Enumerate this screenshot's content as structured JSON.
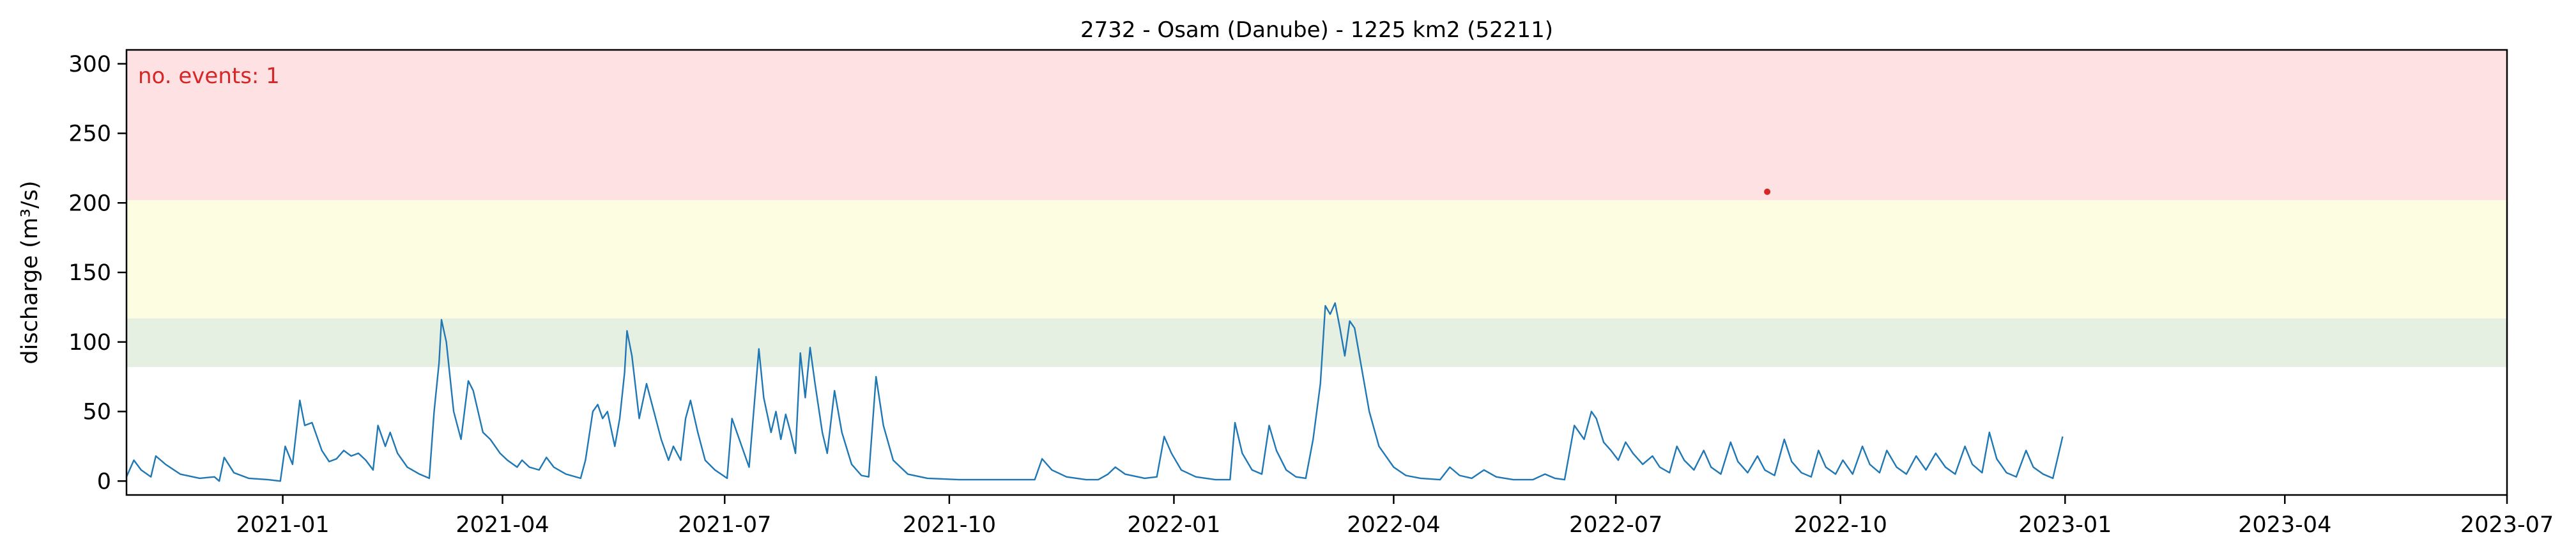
{
  "chart_data": {
    "type": "line",
    "title": "2732 - Osam (Danube) - 1225 km2 (52211)",
    "xlabel": "",
    "ylabel": "discharge (m³/s)",
    "xlim": [
      "2020-10-29",
      "2023-07-01"
    ],
    "ylim": [
      -10,
      310
    ],
    "x_ticks": [
      "2021-01",
      "2021-04",
      "2021-07",
      "2021-10",
      "2022-01",
      "2022-04",
      "2022-07",
      "2022-10",
      "2023-01",
      "2023-04",
      "2023-07"
    ],
    "y_ticks": [
      0,
      50,
      100,
      150,
      200,
      250,
      300
    ],
    "grid": false,
    "bands": [
      {
        "name": "band-green",
        "from": 82,
        "to": 117,
        "color": "#e5f0e3"
      },
      {
        "name": "band-yellow",
        "from": 117,
        "to": 202,
        "color": "#fdfde2"
      },
      {
        "name": "band-red",
        "from": 202,
        "to": 310,
        "color": "#fde1e3"
      }
    ],
    "annotation": {
      "text": "no. events: 1",
      "color": "#d62728"
    },
    "events": [
      {
        "x": "2022-09-01",
        "y": 208,
        "color": "#d62728"
      }
    ],
    "series": [
      {
        "color": "#1f77b4",
        "points": [
          [
            "2020-10-29",
            3
          ],
          [
            "2020-11-01",
            15
          ],
          [
            "2020-11-04",
            8
          ],
          [
            "2020-11-08",
            3
          ],
          [
            "2020-11-10",
            18
          ],
          [
            "2020-11-14",
            12
          ],
          [
            "2020-11-20",
            5
          ],
          [
            "2020-11-28",
            2
          ],
          [
            "2020-12-04",
            3
          ],
          [
            "2020-12-06",
            0
          ],
          [
            "2020-12-08",
            17
          ],
          [
            "2020-12-12",
            6
          ],
          [
            "2020-12-18",
            2
          ],
          [
            "2020-12-26",
            1
          ],
          [
            "2020-12-31",
            0
          ],
          [
            "2021-01-02",
            25
          ],
          [
            "2021-01-05",
            12
          ],
          [
            "2021-01-08",
            58
          ],
          [
            "2021-01-10",
            40
          ],
          [
            "2021-01-13",
            42
          ],
          [
            "2021-01-17",
            22
          ],
          [
            "2021-01-20",
            14
          ],
          [
            "2021-01-23",
            16
          ],
          [
            "2021-01-26",
            22
          ],
          [
            "2021-01-29",
            18
          ],
          [
            "2021-02-01",
            20
          ],
          [
            "2021-02-04",
            15
          ],
          [
            "2021-02-07",
            8
          ],
          [
            "2021-02-09",
            40
          ],
          [
            "2021-02-12",
            25
          ],
          [
            "2021-02-14",
            35
          ],
          [
            "2021-02-17",
            20
          ],
          [
            "2021-02-21",
            10
          ],
          [
            "2021-02-26",
            5
          ],
          [
            "2021-03-02",
            2
          ],
          [
            "2021-03-04",
            50
          ],
          [
            "2021-03-06",
            85
          ],
          [
            "2021-03-07",
            116
          ],
          [
            "2021-03-09",
            100
          ],
          [
            "2021-03-12",
            50
          ],
          [
            "2021-03-15",
            30
          ],
          [
            "2021-03-18",
            72
          ],
          [
            "2021-03-20",
            65
          ],
          [
            "2021-03-24",
            35
          ],
          [
            "2021-03-27",
            30
          ],
          [
            "2021-03-31",
            20
          ],
          [
            "2021-04-03",
            15
          ],
          [
            "2021-04-07",
            10
          ],
          [
            "2021-04-09",
            15
          ],
          [
            "2021-04-12",
            10
          ],
          [
            "2021-04-16",
            8
          ],
          [
            "2021-04-19",
            17
          ],
          [
            "2021-04-22",
            10
          ],
          [
            "2021-04-27",
            5
          ],
          [
            "2021-05-03",
            2
          ],
          [
            "2021-05-05",
            15
          ],
          [
            "2021-05-08",
            50
          ],
          [
            "2021-05-10",
            55
          ],
          [
            "2021-05-12",
            45
          ],
          [
            "2021-05-14",
            50
          ],
          [
            "2021-05-17",
            25
          ],
          [
            "2021-05-19",
            45
          ],
          [
            "2021-05-21",
            78
          ],
          [
            "2021-05-22",
            108
          ],
          [
            "2021-05-24",
            90
          ],
          [
            "2021-05-27",
            45
          ],
          [
            "2021-05-30",
            70
          ],
          [
            "2021-06-02",
            50
          ],
          [
            "2021-06-05",
            30
          ],
          [
            "2021-06-08",
            15
          ],
          [
            "2021-06-10",
            25
          ],
          [
            "2021-06-13",
            15
          ],
          [
            "2021-06-15",
            45
          ],
          [
            "2021-06-17",
            58
          ],
          [
            "2021-06-20",
            35
          ],
          [
            "2021-06-23",
            15
          ],
          [
            "2021-06-27",
            8
          ],
          [
            "2021-07-02",
            2
          ],
          [
            "2021-07-04",
            45
          ],
          [
            "2021-07-08",
            25
          ],
          [
            "2021-07-11",
            10
          ],
          [
            "2021-07-15",
            95
          ],
          [
            "2021-07-17",
            60
          ],
          [
            "2021-07-20",
            35
          ],
          [
            "2021-07-22",
            50
          ],
          [
            "2021-07-24",
            30
          ],
          [
            "2021-07-26",
            48
          ],
          [
            "2021-07-28",
            35
          ],
          [
            "2021-07-30",
            20
          ],
          [
            "2021-08-01",
            92
          ],
          [
            "2021-08-03",
            60
          ],
          [
            "2021-08-05",
            96
          ],
          [
            "2021-08-07",
            70
          ],
          [
            "2021-08-10",
            35
          ],
          [
            "2021-08-12",
            20
          ],
          [
            "2021-08-15",
            65
          ],
          [
            "2021-08-18",
            35
          ],
          [
            "2021-08-22",
            12
          ],
          [
            "2021-08-26",
            4
          ],
          [
            "2021-08-29",
            3
          ],
          [
            "2021-09-01",
            75
          ],
          [
            "2021-09-04",
            40
          ],
          [
            "2021-09-08",
            15
          ],
          [
            "2021-09-14",
            5
          ],
          [
            "2021-09-22",
            2
          ],
          [
            "2021-10-05",
            1
          ],
          [
            "2021-10-20",
            1
          ],
          [
            "2021-11-05",
            1
          ],
          [
            "2021-11-08",
            16
          ],
          [
            "2021-11-12",
            8
          ],
          [
            "2021-11-18",
            3
          ],
          [
            "2021-11-26",
            1
          ],
          [
            "2021-12-01",
            1
          ],
          [
            "2021-12-05",
            5
          ],
          [
            "2021-12-08",
            10
          ],
          [
            "2021-12-12",
            5
          ],
          [
            "2021-12-20",
            2
          ],
          [
            "2021-12-25",
            3
          ],
          [
            "2021-12-28",
            32
          ],
          [
            "2021-12-31",
            20
          ],
          [
            "2022-01-04",
            8
          ],
          [
            "2022-01-10",
            3
          ],
          [
            "2022-01-18",
            1
          ],
          [
            "2022-01-24",
            1
          ],
          [
            "2022-01-26",
            42
          ],
          [
            "2022-01-29",
            20
          ],
          [
            "2022-02-02",
            8
          ],
          [
            "2022-02-06",
            5
          ],
          [
            "2022-02-09",
            40
          ],
          [
            "2022-02-12",
            22
          ],
          [
            "2022-02-16",
            8
          ],
          [
            "2022-02-20",
            3
          ],
          [
            "2022-02-24",
            2
          ],
          [
            "2022-02-27",
            30
          ],
          [
            "2022-03-02",
            70
          ],
          [
            "2022-03-04",
            126
          ],
          [
            "2022-03-06",
            120
          ],
          [
            "2022-03-08",
            128
          ],
          [
            "2022-03-10",
            110
          ],
          [
            "2022-03-12",
            90
          ],
          [
            "2022-03-14",
            115
          ],
          [
            "2022-03-16",
            110
          ],
          [
            "2022-03-19",
            80
          ],
          [
            "2022-03-22",
            50
          ],
          [
            "2022-03-26",
            25
          ],
          [
            "2022-04-01",
            10
          ],
          [
            "2022-04-06",
            4
          ],
          [
            "2022-04-12",
            2
          ],
          [
            "2022-04-20",
            1
          ],
          [
            "2022-04-24",
            10
          ],
          [
            "2022-04-28",
            4
          ],
          [
            "2022-05-03",
            2
          ],
          [
            "2022-05-08",
            8
          ],
          [
            "2022-05-13",
            3
          ],
          [
            "2022-05-20",
            1
          ],
          [
            "2022-05-28",
            1
          ],
          [
            "2022-06-02",
            5
          ],
          [
            "2022-06-06",
            2
          ],
          [
            "2022-06-10",
            1
          ],
          [
            "2022-06-14",
            40
          ],
          [
            "2022-06-18",
            30
          ],
          [
            "2022-06-21",
            50
          ],
          [
            "2022-06-23",
            45
          ],
          [
            "2022-06-26",
            28
          ],
          [
            "2022-06-29",
            22
          ],
          [
            "2022-07-02",
            15
          ],
          [
            "2022-07-05",
            28
          ],
          [
            "2022-07-08",
            20
          ],
          [
            "2022-07-12",
            12
          ],
          [
            "2022-07-16",
            18
          ],
          [
            "2022-07-19",
            10
          ],
          [
            "2022-07-23",
            6
          ],
          [
            "2022-07-26",
            25
          ],
          [
            "2022-07-29",
            15
          ],
          [
            "2022-08-02",
            8
          ],
          [
            "2022-08-06",
            22
          ],
          [
            "2022-08-09",
            10
          ],
          [
            "2022-08-13",
            5
          ],
          [
            "2022-08-17",
            28
          ],
          [
            "2022-08-20",
            14
          ],
          [
            "2022-08-24",
            6
          ],
          [
            "2022-08-28",
            18
          ],
          [
            "2022-08-31",
            8
          ],
          [
            "2022-09-04",
            4
          ],
          [
            "2022-09-08",
            30
          ],
          [
            "2022-09-11",
            14
          ],
          [
            "2022-09-15",
            6
          ],
          [
            "2022-09-19",
            3
          ],
          [
            "2022-09-22",
            22
          ],
          [
            "2022-09-25",
            10
          ],
          [
            "2022-09-29",
            5
          ],
          [
            "2022-10-02",
            15
          ],
          [
            "2022-10-06",
            5
          ],
          [
            "2022-10-10",
            25
          ],
          [
            "2022-10-13",
            12
          ],
          [
            "2022-10-17",
            6
          ],
          [
            "2022-10-20",
            22
          ],
          [
            "2022-10-24",
            10
          ],
          [
            "2022-10-28",
            5
          ],
          [
            "2022-11-01",
            18
          ],
          [
            "2022-11-05",
            8
          ],
          [
            "2022-11-09",
            20
          ],
          [
            "2022-11-13",
            10
          ],
          [
            "2022-11-17",
            5
          ],
          [
            "2022-11-21",
            25
          ],
          [
            "2022-11-24",
            12
          ],
          [
            "2022-11-28",
            6
          ],
          [
            "2022-12-01",
            35
          ],
          [
            "2022-12-04",
            16
          ],
          [
            "2022-12-08",
            6
          ],
          [
            "2022-12-12",
            3
          ],
          [
            "2022-12-16",
            22
          ],
          [
            "2022-12-19",
            10
          ],
          [
            "2022-12-23",
            5
          ],
          [
            "2022-12-27",
            2
          ],
          [
            "2022-12-31",
            32
          ],
          [
            "2021-12-31",
            20
          ]
        ]
      }
    ]
  }
}
